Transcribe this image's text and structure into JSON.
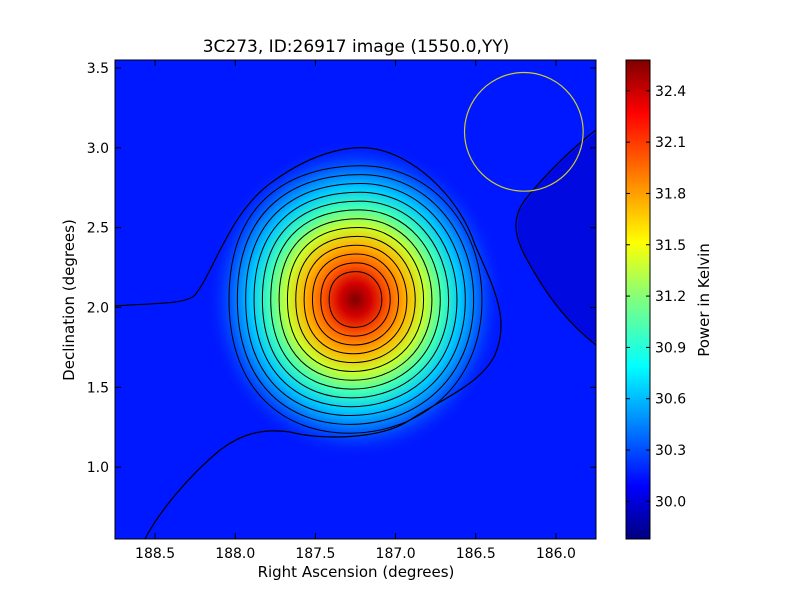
{
  "chart_data": {
    "type": "heatmap",
    "title": "3C273, ID:26917 image (1550.0,YY)",
    "xlabel": "Right Ascension (degrees)",
    "ylabel": "Declination (degrees)",
    "xlim": [
      188.75,
      185.75
    ],
    "ylim": [
      0.55,
      3.55
    ],
    "x_ticks": [
      188.5,
      188.0,
      187.5,
      187.0,
      186.5,
      186.0
    ],
    "x_tick_labels": [
      "188.5",
      "188.0",
      "187.5",
      "187.0",
      "186.5",
      "186.0"
    ],
    "y_ticks": [
      1.0,
      1.5,
      2.0,
      2.5,
      3.0,
      3.5
    ],
    "y_tick_labels": [
      "1.0",
      "1.5",
      "2.0",
      "2.5",
      "3.0",
      "3.5"
    ],
    "colormap": "jet",
    "colorbar": {
      "label": "Power in Kelvin",
      "min": 29.78,
      "max": 32.58,
      "ticks": [
        30.0,
        30.3,
        30.6,
        30.9,
        31.2,
        31.5,
        31.8,
        32.1,
        32.4
      ],
      "tick_labels": [
        "30.0",
        "30.3",
        "30.6",
        "30.9",
        "31.2",
        "31.5",
        "31.8",
        "32.1",
        "32.4"
      ]
    },
    "source_peak": {
      "ra": 187.25,
      "dec": 2.05,
      "value": 32.55
    },
    "background_level": 29.95,
    "contours": {
      "count": 15,
      "color": "#000000"
    },
    "beam": {
      "ra": 186.2,
      "dec": 3.1,
      "radius_deg": 0.37,
      "color": "#cccc33"
    }
  }
}
